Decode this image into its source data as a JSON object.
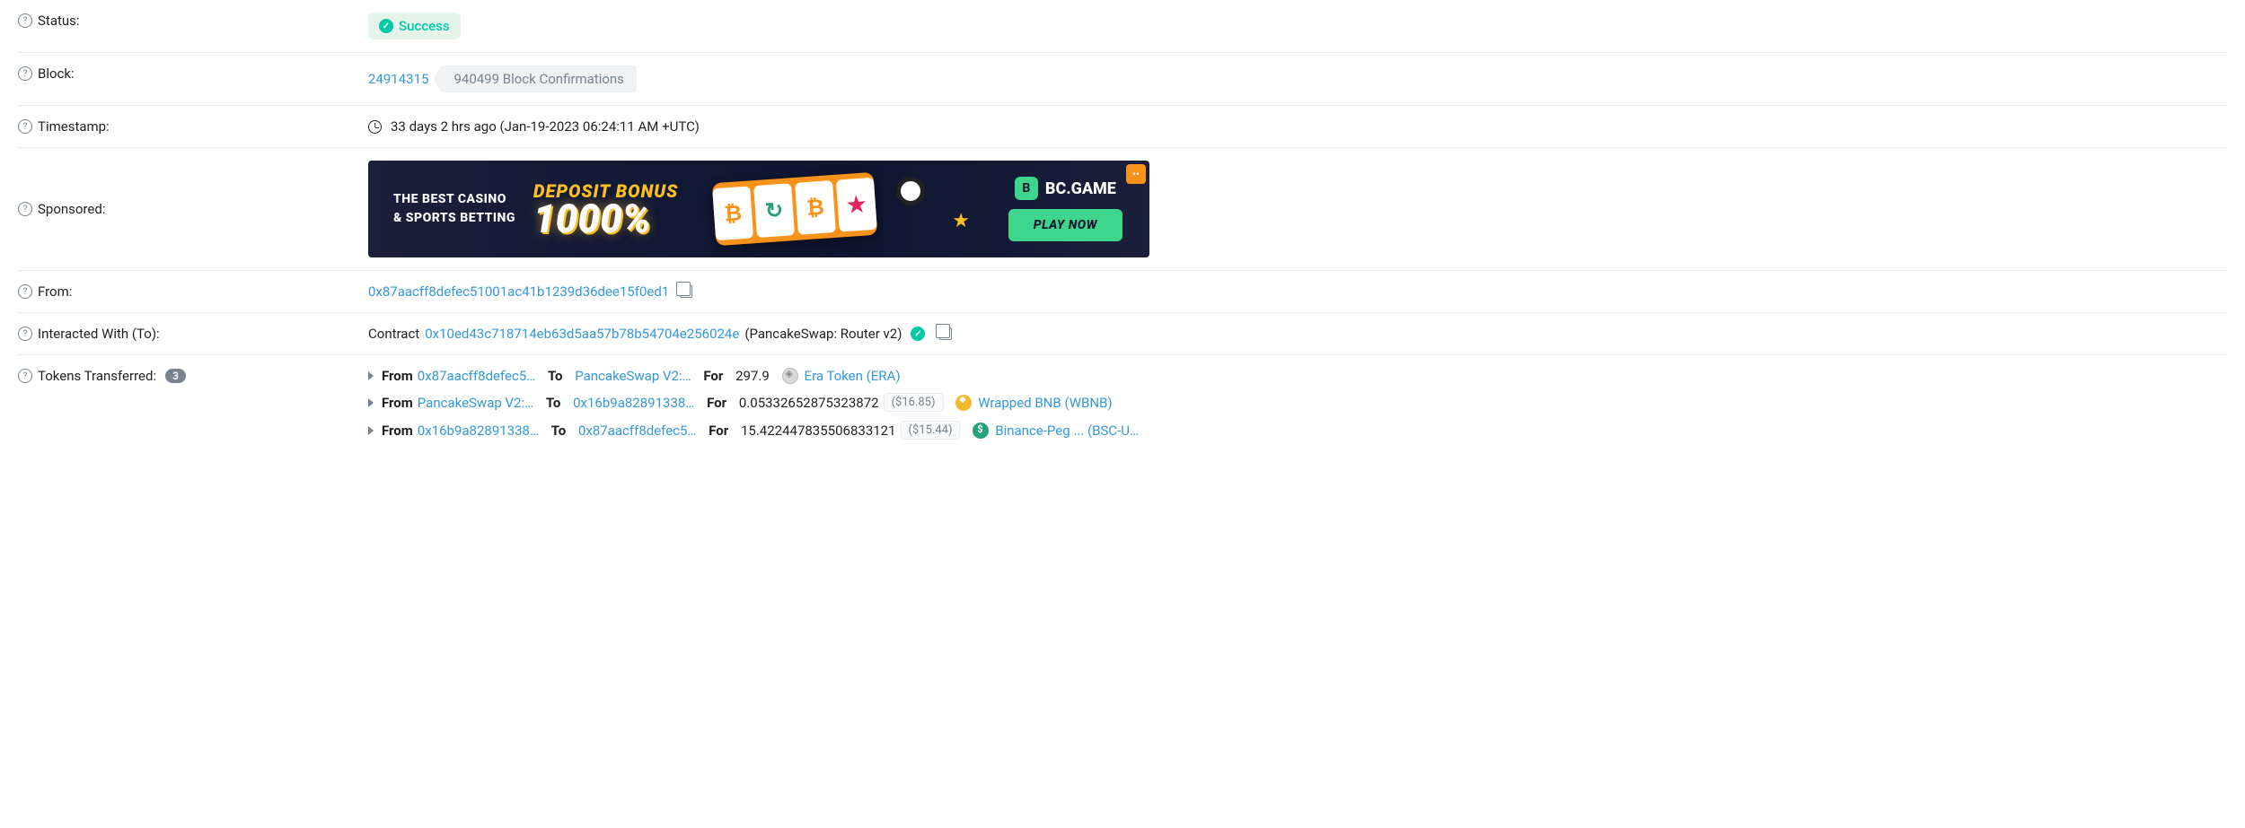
{
  "labels": {
    "status": "Status:",
    "block": "Block:",
    "timestamp": "Timestamp:",
    "sponsored": "Sponsored:",
    "from": "From:",
    "interacted": "Interacted With (To):",
    "tokens": "Tokens Transferred:"
  },
  "status": {
    "text": "Success"
  },
  "block": {
    "number": "24914315",
    "confirmations": "940499 Block Confirmations"
  },
  "timestamp": {
    "text": "33 days 2 hrs ago (Jan-19-2023 06:24:11 AM +UTC)"
  },
  "sponsored": {
    "tagline1": "THE BEST CASINO",
    "tagline2": "& SPORTS BETTING",
    "bonus_label": "DEPOSIT BONUS",
    "bonus_pct": "1000%",
    "brand": "BC.GAME",
    "cta": "PLAY NOW",
    "reels": [
      "₿",
      "↻",
      "₿",
      "★"
    ]
  },
  "from": {
    "address": "0x87aacff8defec51001ac41b1239d36dee15f0ed1"
  },
  "to": {
    "prefix": "Contract",
    "address": "0x10ed43c718714eb63d5aa57b78b54704e256024e",
    "name": "(PancakeSwap: Router v2)"
  },
  "tokens": {
    "count": "3",
    "kw_from": "From",
    "kw_to": "To",
    "kw_for": "For",
    "items": [
      {
        "from": "0x87aacff8defec5…",
        "to": "PancakeSwap V2:…",
        "amount": "297.9",
        "usd": "",
        "token_name": "Era Token (ERA)",
        "token_class": "token-era"
      },
      {
        "from": "PancakeSwap V2:…",
        "to": "0x16b9a82891338…",
        "amount": "0.05332652875323872",
        "usd": "($16.85)",
        "token_name": "Wrapped BNB (WBNB)",
        "token_class": "token-wbnb"
      },
      {
        "from": "0x16b9a82891338…",
        "to": "0x87aacff8defec5…",
        "amount": "15.422447835506833121",
        "usd": "($15.44)",
        "token_name": "Binance-Peg ... (BSC-U…",
        "token_class": "token-busd"
      }
    ]
  }
}
